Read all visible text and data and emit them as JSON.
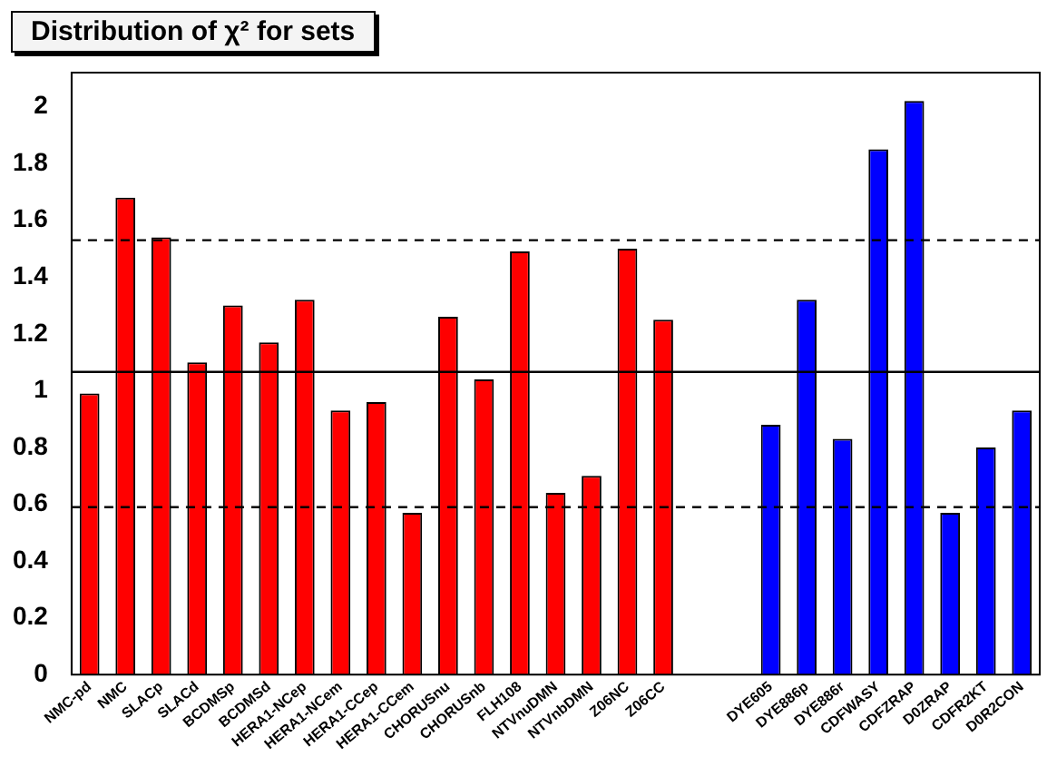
{
  "chart_data": {
    "type": "bar",
    "title": "Distribution of χ² for sets",
    "categories": [
      "NMC-pd",
      "NMC",
      "SLACp",
      "SLACd",
      "BCDMSp",
      "BCDMSd",
      "HERA1-NCep",
      "HERA1-NCem",
      "HERA1-CCep",
      "HERA1-CCem",
      "CHORUSnu",
      "CHORUSnb",
      "FLH108",
      "NTVnuDMN",
      "NTVnbDMN",
      "Z06NC",
      "Z06CC",
      null,
      null,
      "DYE605",
      "DYE886p",
      "DYE886r",
      "CDFWASY",
      "CDFZRAP",
      "D0ZRAP",
      "CDFR2KT",
      "D0R2CON"
    ],
    "values": [
      0.99,
      1.68,
      1.54,
      1.1,
      1.3,
      1.17,
      1.32,
      0.93,
      0.96,
      0.57,
      1.26,
      1.04,
      1.49,
      0.64,
      0.7,
      1.5,
      1.25,
      null,
      null,
      0.88,
      1.32,
      0.83,
      1.85,
      2.02,
      0.57,
      0.8,
      0.93
    ],
    "colors": [
      "#ff0000",
      "#ff0000",
      "#ff0000",
      "#ff0000",
      "#ff0000",
      "#ff0000",
      "#ff0000",
      "#ff0000",
      "#ff0000",
      "#ff0000",
      "#ff0000",
      "#ff0000",
      "#ff0000",
      "#ff0000",
      "#ff0000",
      "#ff0000",
      "#ff0000",
      "#ff0000",
      "#ff0000",
      "#0000ff",
      "#0000ff",
      "#0000ff",
      "#0000ff",
      "#0000ff",
      "#0000ff",
      "#0000ff",
      "#0000ff"
    ],
    "ylim": [
      0,
      2.12
    ],
    "yticks": [
      0,
      0.2,
      0.4,
      0.6,
      0.8,
      1,
      1.2,
      1.4,
      1.6,
      1.8,
      2
    ],
    "ref_lines": [
      {
        "axis": "y",
        "value": 1.066,
        "line_style": "solid"
      },
      {
        "axis": "y",
        "value": 1.53,
        "line_style": "dashed"
      },
      {
        "axis": "y",
        "value": 0.59,
        "line_style": "dashed"
      }
    ],
    "grid": false,
    "legend": false
  }
}
